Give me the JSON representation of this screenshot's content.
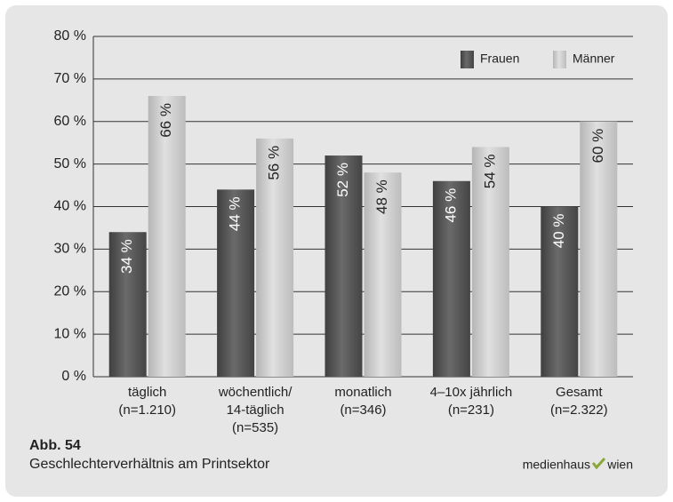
{
  "chart_data": {
    "type": "bar",
    "caption_number": "Abb. 54",
    "caption": "Geschlechterverhältnis am Printsektor",
    "source": [
      "medienhaus",
      "wien"
    ],
    "categories": [
      [
        "täglich",
        "(n=1.210)"
      ],
      [
        "wöchentlich/",
        "14-täglich",
        "(n=535)"
      ],
      [
        "monatlich",
        "(n=346)"
      ],
      [
        "4–10x jährlich",
        "(n=231)"
      ],
      [
        "Gesamt",
        "(n=2.322)"
      ]
    ],
    "series": [
      {
        "name": "Frauen",
        "color": "#5a5a5a",
        "values": [
          34,
          44,
          52,
          46,
          40
        ],
        "value_labels": [
          "34 %",
          "44 %",
          "52 %",
          "46 %",
          "40 %"
        ]
      },
      {
        "name": "Männer",
        "color": "#cacaca",
        "values": [
          66,
          56,
          48,
          54,
          60
        ],
        "value_labels": [
          "66 %",
          "56 %",
          "48 %",
          "54 %",
          "60 %"
        ]
      }
    ],
    "ylim": [
      0,
      80
    ],
    "yticks": [
      {
        "value": 0,
        "label": "0 %"
      },
      {
        "value": 10,
        "label": "10 %"
      },
      {
        "value": 20,
        "label": "20 %"
      },
      {
        "value": 30,
        "label": "30 %"
      },
      {
        "value": 40,
        "label": "40 %"
      },
      {
        "value": 50,
        "label": "50 %"
      },
      {
        "value": 60,
        "label": "60 %"
      },
      {
        "value": 70,
        "label": "70 %"
      },
      {
        "value": 80,
        "label": "80 %"
      }
    ],
    "grid": true,
    "legend": "top-right"
  }
}
